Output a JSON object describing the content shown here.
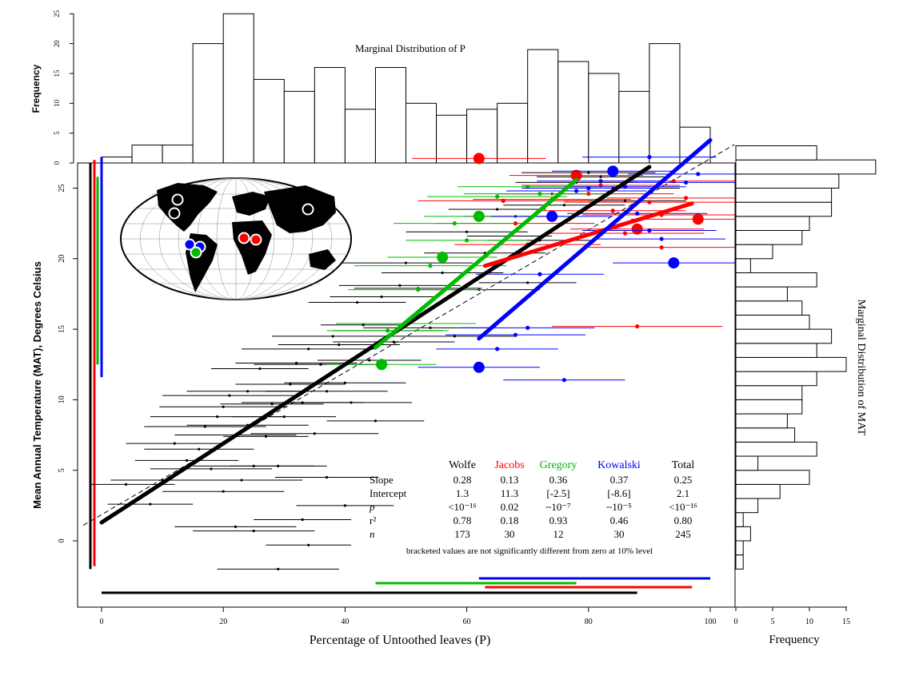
{
  "colors": {
    "wolfe": "#000000",
    "jacobs": "#ff0000",
    "gregory": "#00bb00",
    "kowalski": "#0000ff"
  },
  "top_hist": {
    "title": "Marginal Distribution of P",
    "ylabel": "Frequency",
    "yticks": [
      "0",
      "5",
      "10",
      "15",
      "20",
      "25"
    ]
  },
  "right_hist": {
    "title": "Marginal Distribution of MAT",
    "xlabel": "Frequency",
    "xticks": [
      "0",
      "5",
      "10",
      "15"
    ]
  },
  "main": {
    "xlabel": "Percentage of Untoothed leaves (P)",
    "ylabel": "Mean Annual Temperature (MAT), Degrees Celsius",
    "xticks": [
      "0",
      "20",
      "40",
      "60",
      "80",
      "100"
    ],
    "yticks": [
      "0",
      "5",
      "10",
      "15",
      "20",
      "25"
    ]
  },
  "stats_table": {
    "headers": [
      "Wolfe",
      "Jacobs",
      "Gregory",
      "Kowalski",
      "Total"
    ],
    "rows": [
      {
        "label": "Slope",
        "values": [
          "0.28",
          "0.13",
          "0.36",
          "0.37",
          "0.25"
        ]
      },
      {
        "label": "Intercept",
        "values": [
          "1.3",
          "11.3",
          "[-2.5]",
          "[-8.6]",
          "2.1"
        ]
      },
      {
        "label": "p",
        "values": [
          "<10⁻¹⁶",
          "0.02",
          "~10⁻⁷",
          "~10⁻⁵",
          "<10⁻¹⁶"
        ]
      },
      {
        "label": "r²",
        "values": [
          "0.78",
          "0.18",
          "0.93",
          "0.46",
          "0.80"
        ]
      },
      {
        "label": "n",
        "values": [
          "173",
          "30",
          "12",
          "30",
          "245"
        ]
      }
    ],
    "footnote": "bracketed values are not significantly different from zero at 10% level"
  },
  "chart_data": [
    {
      "type": "bar",
      "name": "top-marginal-histogram",
      "x_bin_edges": [
        0,
        5,
        10,
        15,
        20,
        25,
        30,
        35,
        40,
        45,
        50,
        55,
        60,
        65,
        70,
        75,
        80,
        85,
        90,
        95,
        100
      ],
      "values": [
        1,
        3,
        3,
        20,
        25,
        14,
        12,
        16,
        9,
        16,
        10,
        8,
        9,
        10,
        19,
        17,
        15,
        12,
        20,
        6
      ],
      "title": "Marginal Distribution of P",
      "xlabel": "",
      "ylabel": "Frequency",
      "ylim": [
        0,
        25
      ]
    },
    {
      "type": "bar",
      "orientation": "horizontal",
      "name": "right-marginal-histogram",
      "y_bin_edges": [
        -2,
        -1,
        0,
        1,
        2,
        3,
        4,
        5,
        6,
        7,
        8,
        9,
        10,
        11,
        12,
        13,
        14,
        15,
        16,
        17,
        18,
        19,
        20,
        21,
        22,
        23,
        24,
        25,
        26,
        27,
        28
      ],
      "values": [
        1,
        1,
        2,
        1,
        3,
        6,
        10,
        3,
        11,
        8,
        7,
        9,
        9,
        11,
        15,
        11,
        13,
        10,
        9,
        7,
        11,
        2,
        5,
        9,
        10,
        13,
        13,
        14,
        19,
        11,
        2
      ],
      "title": "Marginal Distribution of MAT",
      "xlabel": "Frequency",
      "ylabel": "",
      "xlim": [
        0,
        15
      ]
    },
    {
      "type": "scatter",
      "name": "main-scatter",
      "xlabel": "Percentage of Untoothed leaves (P)",
      "ylabel": "Mean Annual Temperature (MAT), Degrees Celsius",
      "xlim": [
        -3,
        104
      ],
      "ylim": [
        -3.2,
        28.5
      ],
      "reference_line": {
        "style": "dashed",
        "x": [
          -3,
          104
        ],
        "y": [
          1.1,
          28.1
        ]
      },
      "series": [
        {
          "name": "Wolfe",
          "color": "#000000",
          "fit": {
            "x0": 0,
            "x1": 90,
            "slope": 0.28,
            "intercept": 1.3
          },
          "coverage": {
            "x": [
              0,
              88
            ],
            "y": [
              -2,
              26.8
            ]
          },
          "points": [
            [
              4,
              4
            ],
            [
              8,
              2.6
            ],
            [
              10,
              4.3
            ],
            [
              12,
              6.9
            ],
            [
              14,
              5.7
            ],
            [
              16,
              6.5
            ],
            [
              17,
              8.1
            ],
            [
              18,
              5.1
            ],
            [
              19,
              8.8
            ],
            [
              20,
              9.5
            ],
            [
              21,
              10.3
            ],
            [
              22,
              7.5
            ],
            [
              23,
              4.3
            ],
            [
              24,
              8.2
            ],
            [
              24,
              10.6
            ],
            [
              25,
              5.3
            ],
            [
              26,
              12.2
            ],
            [
              27,
              7.4
            ],
            [
              28,
              9.7
            ],
            [
              29,
              5.3
            ],
            [
              30,
              8.8
            ],
            [
              31,
              11.1
            ],
            [
              32,
              12.6
            ],
            [
              33,
              9.8
            ],
            [
              34,
              13.6
            ],
            [
              35,
              7.6
            ],
            [
              36,
              12.5
            ],
            [
              37,
              10.6
            ],
            [
              38,
              14.5
            ],
            [
              39,
              13.9
            ],
            [
              40,
              11.2
            ],
            [
              41,
              9.8
            ],
            [
              42,
              16.9
            ],
            [
              43,
              15.3
            ],
            [
              44,
              12.8
            ],
            [
              45,
              8.5
            ],
            [
              46,
              17.3
            ],
            [
              47,
              14.9
            ],
            [
              48,
              14.1
            ],
            [
              49,
              18.1
            ],
            [
              50,
              19.7
            ],
            [
              52,
              17.9
            ],
            [
              54,
              15.1
            ],
            [
              56,
              19.0
            ],
            [
              58,
              14.5
            ],
            [
              60,
              21.9
            ],
            [
              62,
              17.8
            ],
            [
              63,
              20.4
            ],
            [
              65,
              23.5
            ],
            [
              67,
              21.6
            ],
            [
              68,
              23.0
            ],
            [
              70,
              18.3
            ],
            [
              72,
              21.3
            ],
            [
              74,
              24.6
            ],
            [
              76,
              23.8
            ],
            [
              78,
              25.4
            ],
            [
              80,
              26.1
            ],
            [
              82,
              25.8
            ],
            [
              84,
              25.0
            ],
            [
              86,
              24.1
            ],
            [
              20,
              3.5
            ],
            [
              22,
              1.0
            ],
            [
              25,
              0.7
            ],
            [
              29,
              -2.0
            ],
            [
              33,
              1.5
            ],
            [
              34,
              -0.3
            ],
            [
              37,
              4.5
            ],
            [
              40,
              2.5
            ]
          ],
          "x_errors": [
            [
              8,
              24
            ],
            [
              10,
              24
            ],
            [
              12,
              29
            ],
            [
              14,
              30
            ],
            [
              18,
              35
            ],
            [
              22,
              40
            ],
            [
              25,
              45
            ],
            [
              28,
              48
            ],
            [
              30,
              52
            ],
            [
              34,
              55
            ],
            [
              38,
              60
            ],
            [
              45,
              65
            ],
            [
              50,
              70
            ],
            [
              55,
              75
            ],
            [
              60,
              80
            ],
            [
              65,
              85
            ]
          ]
        },
        {
          "name": "Jacobs",
          "color": "#ff0000",
          "fit": {
            "x0": 63,
            "x1": 97,
            "slope": 0.13,
            "intercept": 11.3
          },
          "coverage": {
            "x": [
              63,
              97
            ],
            "y": [
              -1.8,
              27
            ]
          },
          "points": [
            [
              62,
              27.1
            ],
            [
              66,
              24.1
            ],
            [
              68,
              22.5
            ],
            [
              70,
              21.0
            ],
            [
              74,
              24.2
            ],
            [
              78,
              25.9
            ],
            [
              80,
              24.6
            ],
            [
              82,
              25.2
            ],
            [
              84,
              23.4
            ],
            [
              86,
              21.8
            ],
            [
              88,
              22.1
            ],
            [
              90,
              24.0
            ],
            [
              92,
              23.1
            ],
            [
              94,
              25.5
            ],
            [
              96,
              24.3
            ],
            [
              98,
              22.8
            ],
            [
              88,
              15.2
            ],
            [
              92,
              20.8
            ]
          ],
          "x_errors": [
            [
              58,
              80
            ],
            [
              60,
              88
            ],
            [
              64,
              90
            ],
            [
              70,
              94
            ],
            [
              74,
              100
            ]
          ]
        },
        {
          "name": "Gregory",
          "color": "#00bb00",
          "fit": {
            "x0": 45,
            "x1": 78,
            "slope": 0.36,
            "intercept": -2.5
          },
          "coverage": {
            "x": [
              45,
              78
            ],
            "y": [
              12.5,
              25.8
            ]
          },
          "points": [
            [
              46,
              12.5
            ],
            [
              47,
              14.9
            ],
            [
              50,
              15.4
            ],
            [
              52,
              17.8
            ],
            [
              54,
              19.5
            ],
            [
              56,
              20.1
            ],
            [
              60,
              21.3
            ],
            [
              65,
              24.4
            ],
            [
              70,
              25.1
            ],
            [
              72,
              24.6
            ],
            [
              62,
              23.0
            ],
            [
              58,
              22.5
            ]
          ],
          "x_errors": [
            [
              38,
              56
            ],
            [
              40,
              60
            ],
            [
              42,
              65
            ],
            [
              45,
              68
            ],
            [
              50,
              75
            ]
          ]
        },
        {
          "name": "Kowalski",
          "color": "#0000ff",
          "fit": {
            "x0": 62,
            "x1": 100,
            "slope": 0.37,
            "intercept": -8.6
          },
          "coverage": {
            "x": [
              62,
              100
            ],
            "y": [
              11.6,
              27.2
            ]
          },
          "points": [
            [
              62,
              12.3
            ],
            [
              65,
              13.6
            ],
            [
              68,
              14.6
            ],
            [
              70,
              15.1
            ],
            [
              72,
              18.9
            ],
            [
              74,
              23.0
            ],
            [
              76,
              11.4
            ],
            [
              78,
              24.8
            ],
            [
              80,
              25.0
            ],
            [
              82,
              25.5
            ],
            [
              84,
              26.2
            ],
            [
              86,
              25.1
            ],
            [
              88,
              23.2
            ],
            [
              90,
              22.0
            ],
            [
              92,
              21.4
            ],
            [
              94,
              19.7
            ],
            [
              96,
              25.4
            ],
            [
              98,
              26.0
            ],
            [
              90,
              27.2
            ]
          ],
          "x_errors": [
            [
              55,
              75
            ],
            [
              60,
              80
            ],
            [
              65,
              88
            ],
            [
              70,
              92
            ],
            [
              75,
              96
            ]
          ]
        }
      ]
    }
  ]
}
